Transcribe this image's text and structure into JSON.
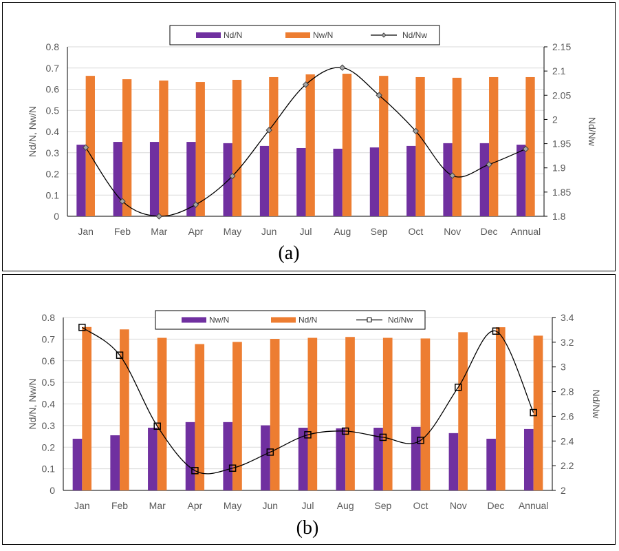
{
  "chart_data": [
    {
      "type": "bar",
      "caption": "(a)",
      "categories": [
        "Jan",
        "Feb",
        "Mar",
        "Apr",
        "May",
        "Jun",
        "Jul",
        "Aug",
        "Sep",
        "Oct",
        "Nov",
        "Dec",
        "Annual"
      ],
      "series": [
        {
          "name": "Nd/N",
          "kind": "bar",
          "axis": "left",
          "color": "#7030A0",
          "values": [
            0.338,
            0.351,
            0.351,
            0.351,
            0.345,
            0.332,
            0.322,
            0.319,
            0.325,
            0.332,
            0.345,
            0.345,
            0.338
          ]
        },
        {
          "name": "Nw/N",
          "kind": "bar",
          "axis": "left",
          "color": "#ED7D31",
          "values": [
            0.663,
            0.647,
            0.641,
            0.634,
            0.644,
            0.657,
            0.67,
            0.673,
            0.663,
            0.657,
            0.654,
            0.657,
            0.657
          ]
        },
        {
          "name": "Nd/Nw",
          "kind": "line",
          "marker": "diamond",
          "axis": "right",
          "color": "#000000",
          "values": [
            1.942,
            1.831,
            1.8,
            1.824,
            1.883,
            1.978,
            2.072,
            2.107,
            2.05,
            1.976,
            1.884,
            1.907,
            1.939
          ]
        }
      ],
      "ylabel": "Nd/N, Nw/N",
      "y2label": "Nd/Nw",
      "ylim": [
        0,
        0.8
      ],
      "yticks": [
        "0",
        "0.1",
        "0.2",
        "0.3",
        "0.4",
        "0.5",
        "0.6",
        "0.7",
        "0.8"
      ],
      "y2lim": [
        1.8,
        2.15
      ],
      "y2ticks": [
        "1.8",
        "1.85",
        "1.9",
        "1.95",
        "2",
        "2.05",
        "2.1",
        "2.15"
      ],
      "grid": true,
      "legend": "top-center"
    },
    {
      "type": "bar",
      "caption": "(b)",
      "categories": [
        "Jan",
        "Feb",
        "Mar",
        "Apr",
        "May",
        "Jun",
        "Jul",
        "Aug",
        "Sep",
        "Oct",
        "Nov",
        "Dec",
        "Annual"
      ],
      "series": [
        {
          "name": "Nw/N",
          "kind": "bar",
          "axis": "left",
          "color": "#7030A0",
          "values": [
            0.239,
            0.255,
            0.29,
            0.316,
            0.316,
            0.301,
            0.29,
            0.287,
            0.29,
            0.294,
            0.265,
            0.239,
            0.284
          ]
        },
        {
          "name": "Nd/N",
          "kind": "bar",
          "axis": "left",
          "color": "#ED7D31",
          "values": [
            0.756,
            0.745,
            0.706,
            0.677,
            0.687,
            0.701,
            0.706,
            0.71,
            0.706,
            0.703,
            0.732,
            0.755,
            0.716
          ]
        },
        {
          "name": "Nd/Nw",
          "kind": "line",
          "marker": "square",
          "axis": "right",
          "color": "#000000",
          "values": [
            3.32,
            3.095,
            2.52,
            2.16,
            2.18,
            2.31,
            2.45,
            2.48,
            2.43,
            2.405,
            2.835,
            3.29,
            2.63
          ]
        }
      ],
      "ylabel": "Nd/N, Nw/N",
      "y2label": "Nd/Nw",
      "ylim": [
        0,
        0.8
      ],
      "yticks": [
        "0",
        "0.1",
        "0.2",
        "0.3",
        "0.4",
        "0.5",
        "0.6",
        "0.7",
        "0.8"
      ],
      "y2lim": [
        2,
        3.4
      ],
      "y2ticks": [
        "2",
        "2.2",
        "2.4",
        "2.6",
        "2.8",
        "3",
        "3.2",
        "3.4"
      ],
      "grid": true,
      "legend": "top-center"
    }
  ]
}
